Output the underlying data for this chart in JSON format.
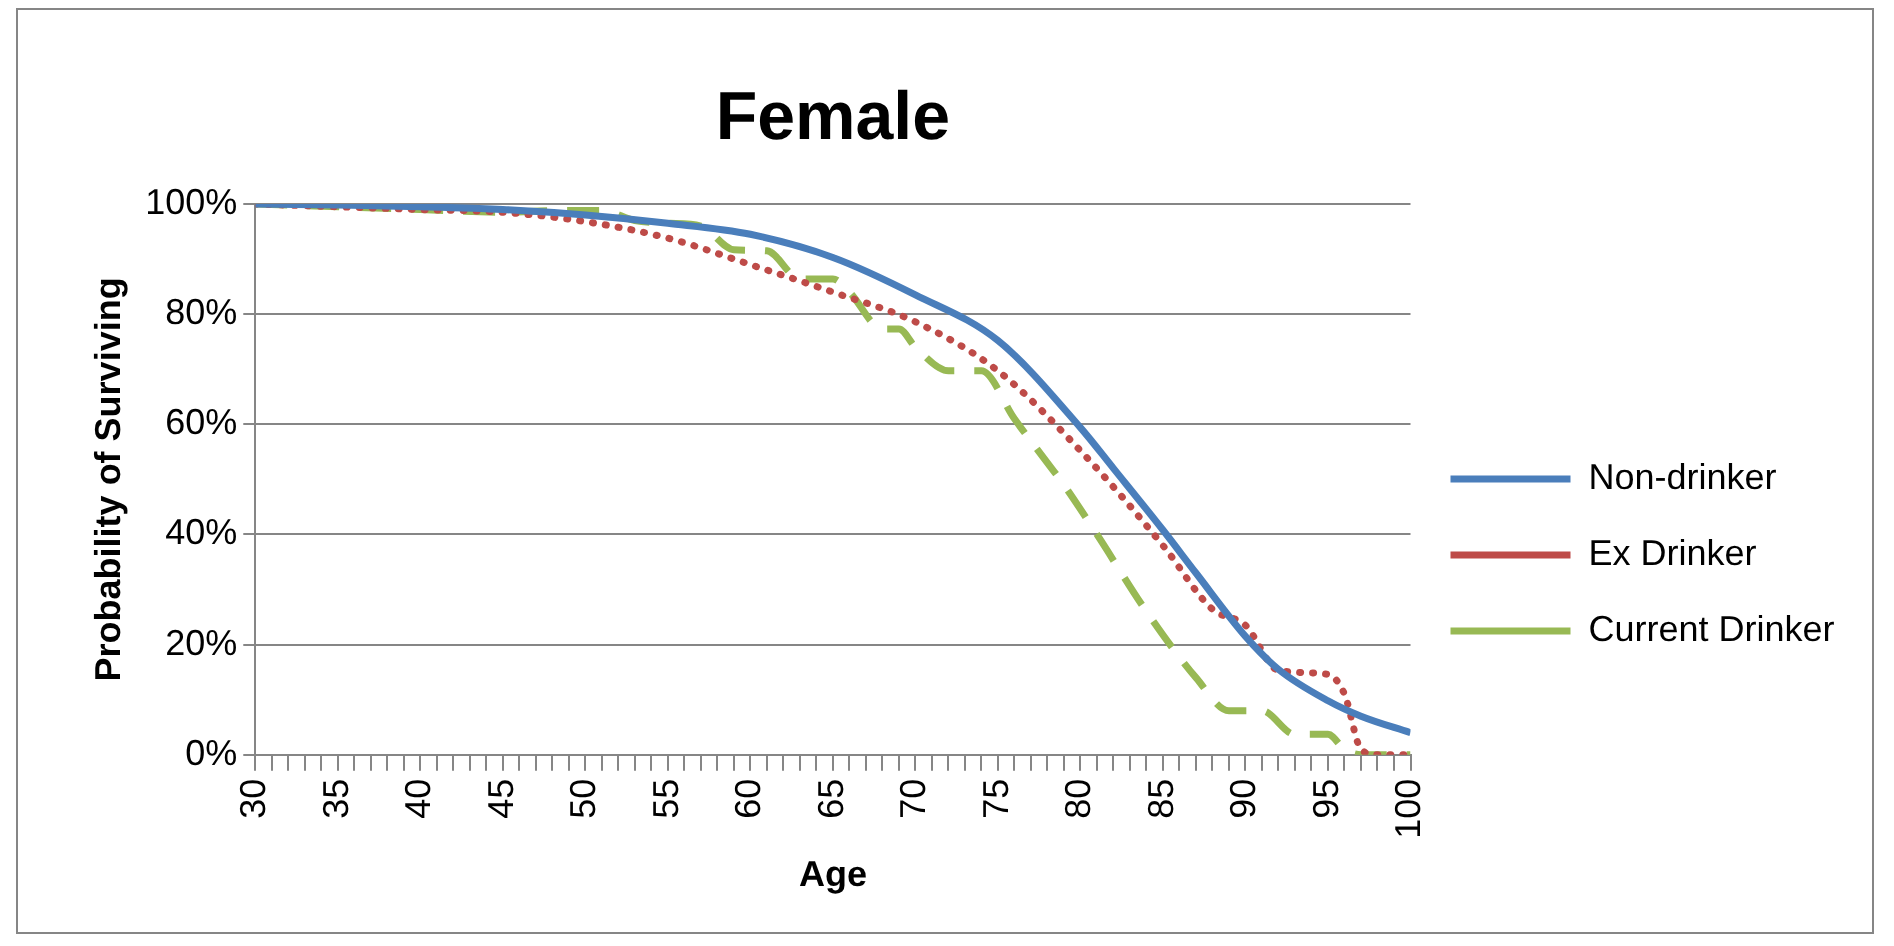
{
  "chart_data": {
    "type": "line",
    "title": "Female",
    "xlabel": "Age",
    "ylabel": "Probability of Surviving",
    "xlim": [
      30,
      100
    ],
    "xticks": [
      30,
      {
        "value": 31,
        "label": null
      },
      {
        "value": 32,
        "label": null
      },
      {
        "value": 33,
        "label": null
      },
      {
        "value": 34,
        "label": null
      },
      35,
      {
        "value": 36,
        "label": null
      },
      {
        "value": 37,
        "label": null
      },
      {
        "value": 38,
        "label": null
      },
      {
        "value": 39,
        "label": null
      },
      40,
      {
        "value": 41,
        "label": null
      },
      {
        "value": 42,
        "label": null
      },
      {
        "value": 43,
        "label": null
      },
      {
        "value": 44,
        "label": null
      },
      45,
      {
        "value": 46,
        "label": null
      },
      {
        "value": 47,
        "label": null
      },
      {
        "value": 48,
        "label": null
      },
      {
        "value": 49,
        "label": null
      },
      50,
      {
        "value": 51,
        "label": null
      },
      {
        "value": 52,
        "label": null
      },
      {
        "value": 53,
        "label": null
      },
      {
        "value": 54,
        "label": null
      },
      55,
      {
        "value": 56,
        "label": null
      },
      {
        "value": 57,
        "label": null
      },
      {
        "value": 58,
        "label": null
      },
      {
        "value": 59,
        "label": null
      },
      60,
      {
        "value": 61,
        "label": null
      },
      {
        "value": 62,
        "label": null
      },
      {
        "value": 63,
        "label": null
      },
      {
        "value": 64,
        "label": null
      },
      65,
      {
        "value": 66,
        "label": null
      },
      {
        "value": 67,
        "label": null
      },
      {
        "value": 68,
        "label": null
      },
      {
        "value": 69,
        "label": null
      },
      70,
      {
        "value": 71,
        "label": null
      },
      {
        "value": 72,
        "label": null
      },
      {
        "value": 73,
        "label": null
      },
      {
        "value": 74,
        "label": null
      },
      75,
      {
        "value": 76,
        "label": null
      },
      {
        "value": 77,
        "label": null
      },
      {
        "value": 78,
        "label": null
      },
      {
        "value": 79,
        "label": null
      },
      80,
      {
        "value": 81,
        "label": null
      },
      {
        "value": 82,
        "label": null
      },
      {
        "value": 83,
        "label": null
      },
      {
        "value": 84,
        "label": null
      },
      85,
      {
        "value": 86,
        "label": null
      },
      {
        "value": 87,
        "label": null
      },
      {
        "value": 88,
        "label": null
      },
      {
        "value": 89,
        "label": null
      },
      90,
      {
        "value": 91,
        "label": null
      },
      {
        "value": 92,
        "label": null
      },
      {
        "value": 93,
        "label": null
      },
      {
        "value": 94,
        "label": null
      },
      95,
      {
        "value": 96,
        "label": null
      },
      {
        "value": 97,
        "label": null
      },
      {
        "value": 98,
        "label": null
      },
      {
        "value": 99,
        "label": null
      },
      100
    ],
    "ylim": [
      0,
      100
    ],
    "yticks": [
      {
        "value": 0,
        "label": "0%"
      },
      {
        "value": 20,
        "label": "20%"
      },
      {
        "value": 40,
        "label": "40%"
      },
      {
        "value": 60,
        "label": "60%"
      },
      {
        "value": 80,
        "label": "80%"
      },
      {
        "value": 100,
        "label": "100%"
      }
    ],
    "grid": "y",
    "legend": "right",
    "marker": "none",
    "series": [
      {
        "name": "Non-drinker",
        "color": "#4a7ebb",
        "line_style": "solid",
        "x": [
          30,
          35,
          40,
          45,
          50,
          55,
          60,
          65,
          70,
          75,
          80,
          82,
          85,
          87,
          90,
          92,
          95,
          97,
          100
        ],
        "values": [
          100,
          99.8,
          99.5,
          99,
          98,
          96.5,
          94.5,
          90.3,
          83.5,
          75.2,
          59.4,
          52,
          40.8,
          33,
          21.5,
          15.5,
          9.8,
          7,
          4
        ]
      },
      {
        "name": "Ex Drinker",
        "color": "#be4b48",
        "line_style": "dotted",
        "x": [
          30,
          35,
          40,
          45,
          50,
          55,
          60,
          65,
          70,
          75,
          80,
          85,
          88,
          90,
          92,
          95,
          96,
          97,
          98,
          100
        ],
        "values": [
          100,
          99.5,
          99,
          98.5,
          96.8,
          93.8,
          89,
          84,
          78.6,
          69.7,
          55.2,
          38,
          26.4,
          23.5,
          15.3,
          14.6,
          11,
          1,
          0,
          0
        ]
      },
      {
        "name": "Current Drinker",
        "color": "#98b954",
        "line_style": "dashed",
        "x": [
          30,
          35,
          40,
          45,
          48,
          51,
          53,
          55,
          57,
          59,
          61,
          63,
          65,
          66,
          68,
          69,
          70,
          72,
          74,
          76,
          78,
          79,
          81,
          84,
          87,
          89,
          91,
          93,
          95,
          96,
          97,
          100
        ],
        "values": [
          100,
          99.5,
          99,
          98.5,
          98.8,
          98.8,
          97,
          96.5,
          96,
          91.7,
          91.5,
          86.4,
          86.4,
          84,
          77.3,
          77.3,
          74,
          69.7,
          69.7,
          61,
          53,
          49,
          40,
          26,
          14,
          8,
          8,
          3.7,
          3.7,
          1,
          0,
          0
        ]
      }
    ]
  }
}
